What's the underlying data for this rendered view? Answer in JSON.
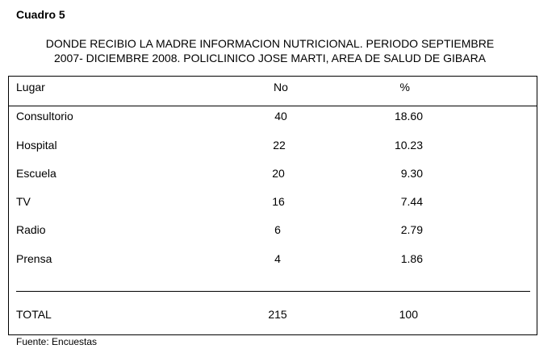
{
  "heading": "Cuadro 5",
  "title": {
    "line1": "DONDE RECIBIO LA MADRE INFORMACION NUTRICIONAL. PERIODO SEPTIEMBRE",
    "line2": "2007-  DICIEMBRE 2008. POLICLINICO JOSE MARTI, AREA DE SALUD DE GIBARA"
  },
  "table": {
    "headers": {
      "lugar": "Lugar",
      "no": "No",
      "pct": "%"
    },
    "rows": [
      {
        "lugar": "Consultorio",
        "no": "40",
        "pct": "18.60"
      },
      {
        "lugar": "Hospital",
        "no": "22",
        "pct": "10.23"
      },
      {
        "lugar": "Escuela",
        "no": "20",
        "pct": "9.30"
      },
      {
        "lugar": "TV",
        "no": "16",
        "pct": "7.44"
      },
      {
        "lugar": "Radio",
        "no": "6",
        "pct": "2.79"
      },
      {
        "lugar": "Prensa",
        "no": "4",
        "pct": "1.86"
      }
    ],
    "total": {
      "lugar": "TOTAL",
      "no": "215",
      "pct": "100"
    }
  },
  "source": "Fuente: Encuestas"
}
